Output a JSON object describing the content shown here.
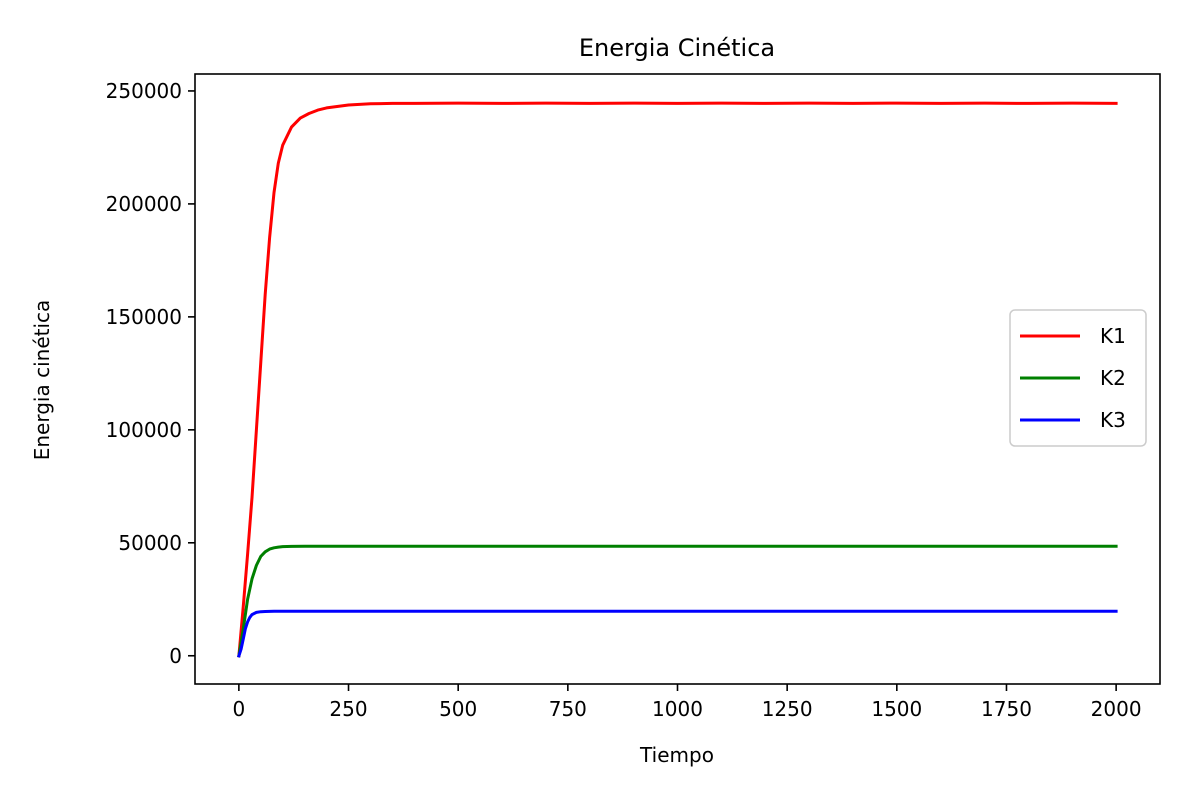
{
  "chart_data": {
    "type": "line",
    "title": "Energia Cinética",
    "xlabel": "Tiempo",
    "ylabel": "Energia cinética",
    "xlim": [
      -100,
      2100
    ],
    "ylim": [
      -12500,
      257500
    ],
    "xticks": [
      0,
      250,
      500,
      750,
      1000,
      1250,
      1500,
      1750,
      2000
    ],
    "xtick_labels": [
      "0",
      "250",
      "500",
      "750",
      "1000",
      "1250",
      "1500",
      "1750",
      "2000"
    ],
    "yticks": [
      0,
      50000,
      100000,
      150000,
      200000,
      250000
    ],
    "ytick_labels": [
      "0",
      "50000",
      "100000",
      "150000",
      "200000",
      "250000"
    ],
    "grid": false,
    "legend_position": "center-right",
    "series": [
      {
        "name": "K1",
        "color": "#ff0000",
        "x": [
          0,
          10,
          20,
          30,
          40,
          50,
          60,
          70,
          80,
          90,
          100,
          120,
          140,
          160,
          180,
          200,
          250,
          300,
          350,
          400,
          500,
          600,
          700,
          800,
          900,
          1000,
          1100,
          1200,
          1300,
          1400,
          1500,
          1600,
          1700,
          1800,
          1900,
          2000
        ],
        "values": [
          0,
          22000,
          45000,
          70000,
          100000,
          130000,
          160000,
          185000,
          205000,
          218000,
          226000,
          234000,
          238000,
          240000,
          241500,
          242500,
          243800,
          244300,
          244500,
          244500,
          244600,
          244500,
          244600,
          244500,
          244600,
          244500,
          244600,
          244500,
          244600,
          244500,
          244600,
          244500,
          244600,
          244500,
          244600,
          244500
        ]
      },
      {
        "name": "K2",
        "color": "#008000",
        "x": [
          0,
          10,
          20,
          30,
          40,
          50,
          60,
          70,
          80,
          90,
          100,
          120,
          150,
          200,
          300,
          500,
          1000,
          1500,
          2000
        ],
        "values": [
          0,
          12000,
          25000,
          34000,
          40000,
          44000,
          46000,
          47200,
          47800,
          48100,
          48300,
          48400,
          48500,
          48500,
          48500,
          48500,
          48500,
          48500,
          48500
        ]
      },
      {
        "name": "K3",
        "color": "#0000ff",
        "x": [
          0,
          5,
          10,
          15,
          20,
          25,
          30,
          40,
          50,
          60,
          80,
          100,
          200,
          500,
          1000,
          1500,
          2000
        ],
        "values": [
          0,
          3000,
          7500,
          12000,
          15000,
          17000,
          18200,
          19200,
          19500,
          19600,
          19700,
          19700,
          19700,
          19700,
          19700,
          19700,
          19700
        ]
      }
    ]
  }
}
